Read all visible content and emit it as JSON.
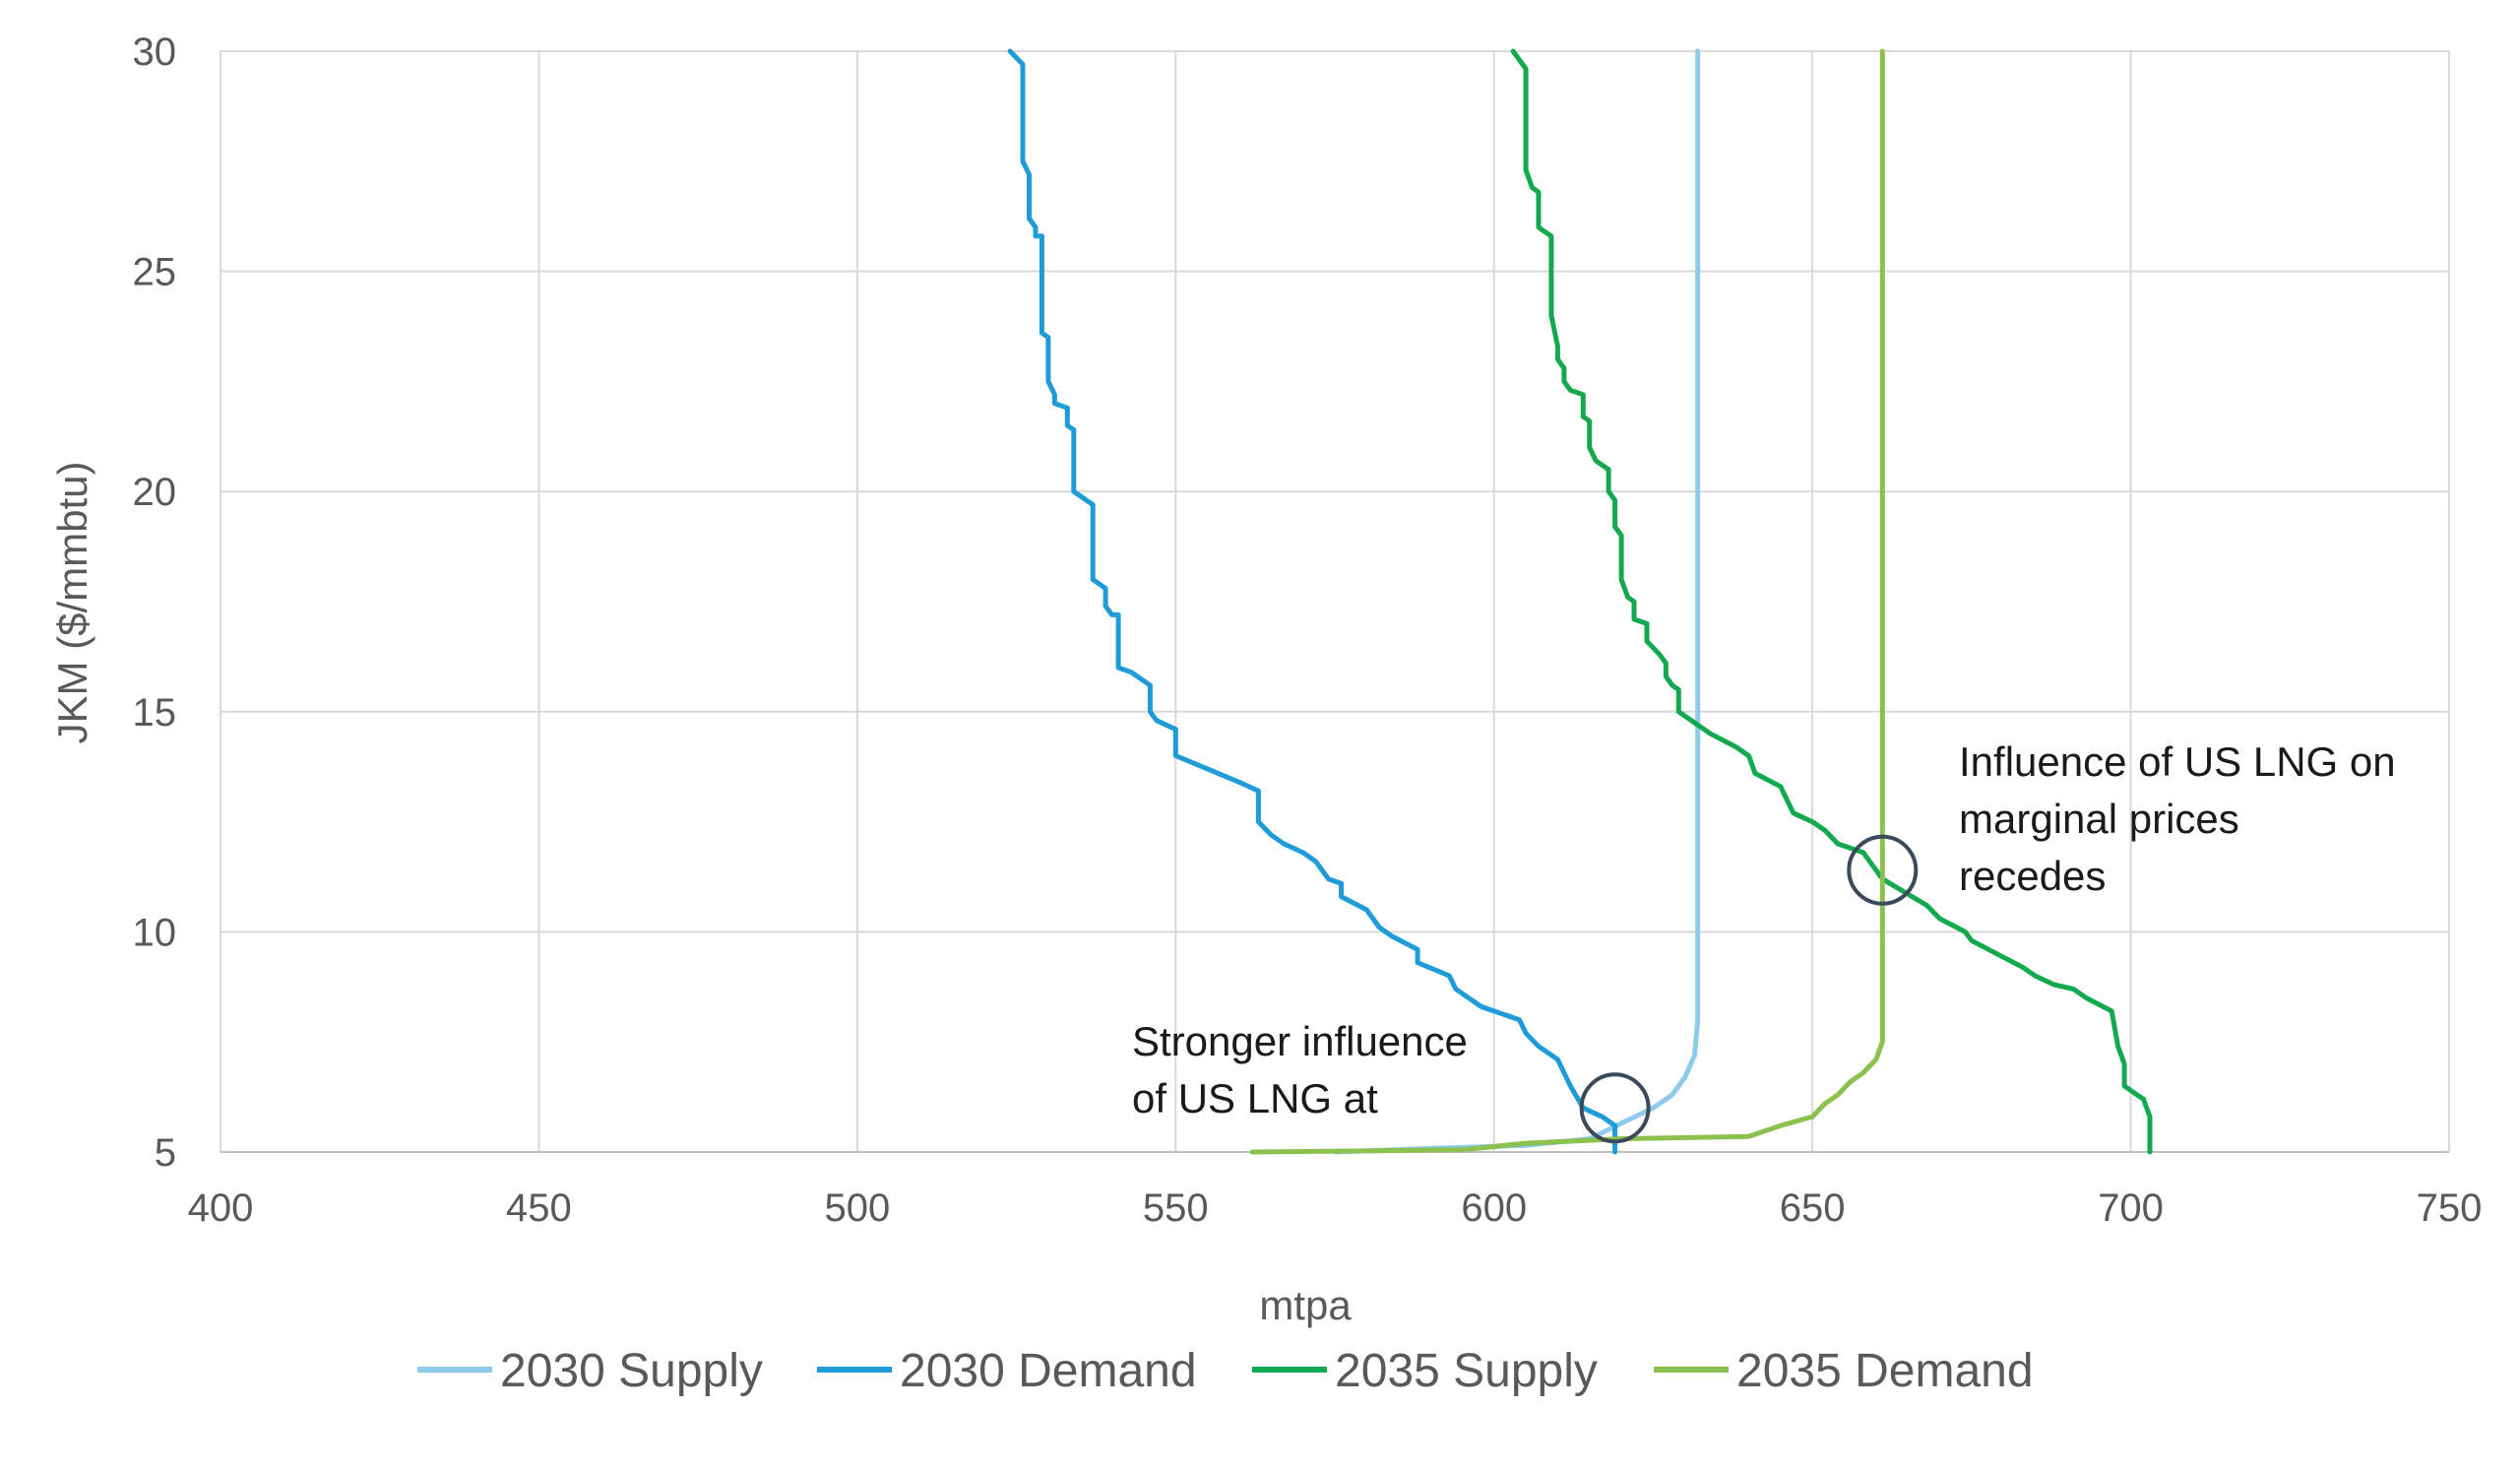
{
  "chart_data": {
    "type": "line",
    "title": "",
    "xlabel": "mtpa",
    "ylabel": "JKM ($/mmbtu)",
    "xlim": [
      400,
      750
    ],
    "ylim": [
      5,
      30
    ],
    "xticks": [
      "400",
      "450",
      "500",
      "550",
      "600",
      "650",
      "700",
      "750"
    ],
    "yticks": [
      "5",
      "10",
      "15",
      "20",
      "25",
      "30"
    ],
    "grid": true,
    "legend_position": "bottom",
    "series": [
      {
        "name": "2030 Supply",
        "color": "#8ecbeb",
        "points": [
          [
            575,
            5.0
          ],
          [
            590,
            5.08
          ],
          [
            605,
            5.15
          ],
          [
            615,
            5.3
          ],
          [
            620,
            5.65
          ],
          [
            625,
            6.0
          ],
          [
            628,
            6.3
          ],
          [
            630,
            6.7
          ],
          [
            631.5,
            7.2
          ],
          [
            632,
            8
          ],
          [
            632,
            30
          ]
        ]
      },
      {
        "name": "2030 Demand",
        "color": "#1f9bd7",
        "points": [
          [
            524,
            30
          ],
          [
            526,
            29.7
          ],
          [
            526,
            27.5
          ],
          [
            527,
            27.2
          ],
          [
            527,
            26.2
          ],
          [
            528,
            26
          ],
          [
            528,
            25.8
          ],
          [
            529,
            25.8
          ],
          [
            529,
            23.6
          ],
          [
            530,
            23.5
          ],
          [
            530,
            22.5
          ],
          [
            531,
            22.2
          ],
          [
            531,
            22
          ],
          [
            533,
            21.9
          ],
          [
            533,
            21.5
          ],
          [
            534,
            21.4
          ],
          [
            534,
            20
          ],
          [
            535,
            19.9
          ],
          [
            537,
            19.7
          ],
          [
            537,
            18.9
          ],
          [
            537,
            18
          ],
          [
            539,
            17.8
          ],
          [
            539,
            17.4
          ],
          [
            540,
            17.2
          ],
          [
            541,
            17.2
          ],
          [
            541,
            16
          ],
          [
            543,
            15.9
          ],
          [
            546,
            15.6
          ],
          [
            546,
            15
          ],
          [
            547,
            14.8
          ],
          [
            550,
            14.6
          ],
          [
            550,
            14
          ],
          [
            555,
            13.7
          ],
          [
            560,
            13.4
          ],
          [
            563,
            13.2
          ],
          [
            563,
            12.5
          ],
          [
            565,
            12.2
          ],
          [
            567,
            12
          ],
          [
            570,
            11.8
          ],
          [
            572,
            11.6
          ],
          [
            574,
            11.2
          ],
          [
            576,
            11.1
          ],
          [
            576,
            10.8
          ],
          [
            580,
            10.5
          ],
          [
            582,
            10.1
          ],
          [
            584,
            9.9
          ],
          [
            588,
            9.6
          ],
          [
            588,
            9.3
          ],
          [
            593,
            9
          ],
          [
            594,
            8.7
          ],
          [
            598,
            8.3
          ],
          [
            604,
            8
          ],
          [
            605,
            7.7
          ],
          [
            607,
            7.4
          ],
          [
            608,
            7.3
          ],
          [
            610,
            7.1
          ],
          [
            612,
            6.5
          ],
          [
            614,
            6.0
          ],
          [
            617,
            5.8
          ],
          [
            619,
            5.6
          ],
          [
            619,
            5.0
          ]
        ]
      },
      {
        "name": "2035 Supply",
        "color": "#13a94e",
        "points": [
          [
            603,
            30
          ],
          [
            605,
            29.6
          ],
          [
            605,
            27.3
          ],
          [
            606,
            26.9
          ],
          [
            607,
            26.8
          ],
          [
            607,
            26
          ],
          [
            608,
            25.9
          ],
          [
            609,
            25.8
          ],
          [
            609,
            24
          ],
          [
            610,
            23.3
          ],
          [
            610,
            23
          ],
          [
            611,
            22.8
          ],
          [
            611,
            22.5
          ],
          [
            612,
            22.3
          ],
          [
            614,
            22.2
          ],
          [
            614,
            21.7
          ],
          [
            615,
            21.6
          ],
          [
            615,
            21
          ],
          [
            616,
            20.7
          ],
          [
            618,
            20.5
          ],
          [
            618,
            20
          ],
          [
            619,
            19.8
          ],
          [
            619,
            19.2
          ],
          [
            620,
            19
          ],
          [
            620,
            18
          ],
          [
            621,
            17.6
          ],
          [
            622,
            17.5
          ],
          [
            622,
            17.1
          ],
          [
            624,
            17
          ],
          [
            624,
            16.6
          ],
          [
            626,
            16.3
          ],
          [
            627,
            16.1
          ],
          [
            627,
            15.8
          ],
          [
            628,
            15.6
          ],
          [
            629,
            15.5
          ],
          [
            629,
            15.0
          ],
          [
            634,
            14.5
          ],
          [
            638,
            14.2
          ],
          [
            640,
            14.0
          ],
          [
            641,
            13.6
          ],
          [
            645,
            13.3
          ],
          [
            647,
            12.7
          ],
          [
            650,
            12.5
          ],
          [
            652,
            12.3
          ],
          [
            654,
            12.0
          ],
          [
            658,
            11.8
          ],
          [
            661,
            11.2
          ],
          [
            668,
            10.6
          ],
          [
            670,
            10.3
          ],
          [
            674,
            10.0
          ],
          [
            675,
            9.8
          ],
          [
            679,
            9.5
          ],
          [
            683,
            9.2
          ],
          [
            685,
            9.0
          ],
          [
            688,
            8.8
          ],
          [
            691,
            8.7
          ],
          [
            693,
            8.5
          ],
          [
            697,
            8.2
          ],
          [
            698,
            7.4
          ],
          [
            699,
            7.0
          ],
          [
            699,
            6.5
          ],
          [
            701,
            6.3
          ],
          [
            702,
            6.2
          ],
          [
            703,
            5.8
          ],
          [
            703,
            5.0
          ]
        ]
      },
      {
        "name": "2035 Demand",
        "color": "#8cc04f",
        "points": [
          [
            562,
            5.0
          ],
          [
            595,
            5.05
          ],
          [
            605,
            5.2
          ],
          [
            620,
            5.3
          ],
          [
            640,
            5.35
          ],
          [
            645,
            5.6
          ],
          [
            650,
            5.8
          ],
          [
            652,
            6.1
          ],
          [
            654,
            6.3
          ],
          [
            656,
            6.6
          ],
          [
            658,
            6.8
          ],
          [
            660,
            7.1
          ],
          [
            661,
            7.5
          ],
          [
            661,
            8
          ],
          [
            661,
            30
          ]
        ]
      }
    ],
    "annotations": [
      {
        "lines": [
          "Stronger influence",
          "of US LNG at"
        ],
        "anchor": [
          619,
          6.0
        ]
      },
      {
        "lines": [
          "Influence of US LNG on",
          "marginal prices",
          "recedes"
        ],
        "anchor": [
          661,
          11.4
        ]
      }
    ]
  },
  "legend": {
    "items": [
      "2030 Supply",
      "2030 Demand",
      "2035 Supply",
      "2035 Demand"
    ]
  }
}
